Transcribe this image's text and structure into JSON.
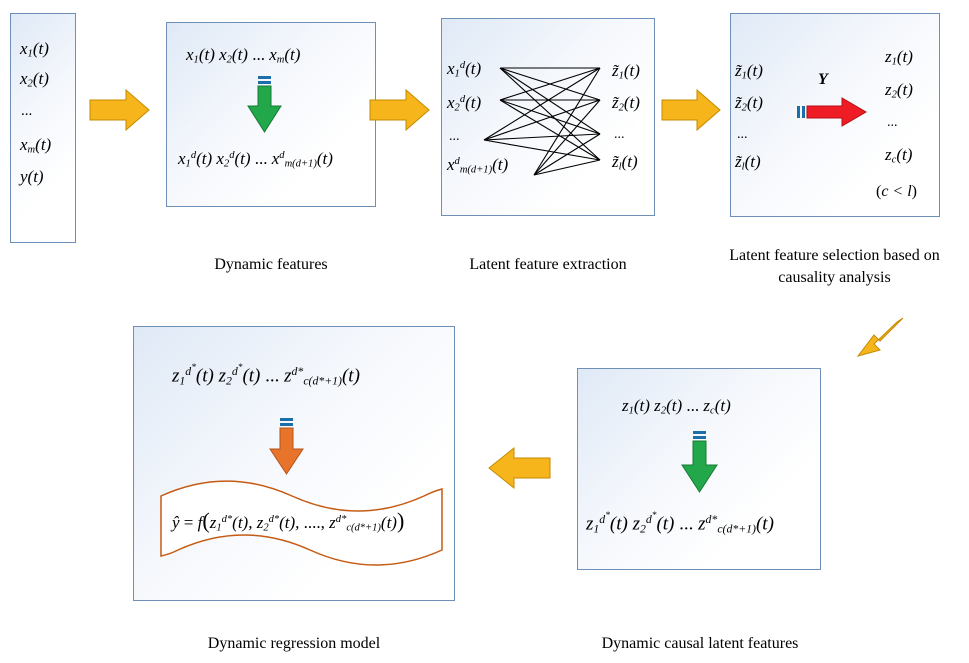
{
  "input_box": {
    "items": [
      "x1(t)",
      "x2(t)",
      "...",
      "xm(t)",
      "y(t)"
    ]
  },
  "dynamic_features": {
    "top": "x1(t) x2(t) ... xm(t)",
    "bottom": "x1d(t) x2d(t) ... xm(d+1)d(t)",
    "caption": "Dynamic features"
  },
  "latent_extraction": {
    "inputs": [
      "x1d(t)",
      "x2d(t)",
      "...",
      "xm(d+1)d(t)"
    ],
    "outputs": [
      "z̃1(t)",
      "z̃2(t)",
      "...",
      "z̃l(t)"
    ],
    "caption": "Latent feature extraction"
  },
  "causality_selection": {
    "inputs": [
      "z̃1(t)",
      "z̃2(t)",
      "...",
      "z̃l(t)"
    ],
    "arrow_label": "Y",
    "outputs": [
      "z1(t)",
      "z2(t)",
      "...",
      "zc(t)",
      "(c < l)"
    ],
    "caption_line1": "Latent feature selection based on",
    "caption_line2": "causality analysis"
  },
  "causal_latent": {
    "top": "z1(t) z2(t) ... zc(t)",
    "bottom": "z1d*(t) z2d*(t) ... zc(d*+1)d*(t)",
    "caption": "Dynamic causal latent features"
  },
  "regression_model": {
    "top": "z1d*(t) z2d*(t) ... zc(d*+1)d*(t)",
    "formula": "ŷ = f(z1d*(t), z2d*(t), ...., zc(d*+1)d*(t))",
    "caption": "Dynamic regression model"
  },
  "colors": {
    "box_border": "#6e8fb7",
    "flow_arrow": "#f5b51b",
    "green_arrow": "#22a84a",
    "red_arrow": "#ee1c24",
    "orange_arrow": "#e8732a",
    "wave_border": "#c55a11"
  }
}
